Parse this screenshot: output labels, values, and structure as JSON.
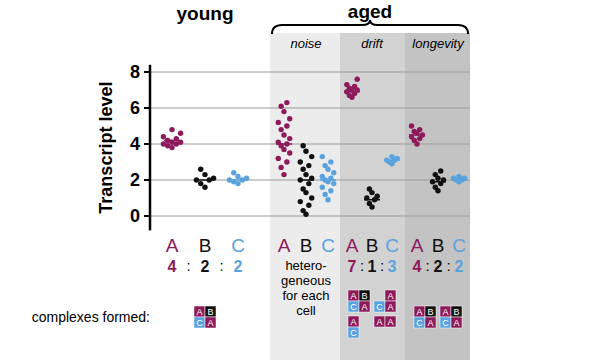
{
  "chart_data": {
    "type": "strip",
    "headers": [
      "young",
      "aged"
    ],
    "categories": [
      null,
      "noise",
      "drift",
      "longevity"
    ],
    "ylabel": "Transcript level",
    "ylim": [
      -0.8,
      8.4
    ],
    "yticks": [
      0,
      2,
      4,
      6,
      8
    ],
    "grid": true,
    "series": [
      {
        "name": "A",
        "color": "#8e1a5c",
        "values": [
          [
            3.8,
            3.9,
            4.0,
            4.0,
            4.1,
            4.1,
            4.2,
            4.3,
            4.4,
            4.6,
            4.8
          ],
          [
            2.3,
            2.7,
            3.0,
            3.2,
            3.5,
            3.7,
            3.9,
            4.0,
            4.1,
            4.3,
            4.5,
            4.8,
            5.0,
            5.2,
            5.4,
            5.8,
            6.1,
            6.3
          ],
          [
            6.6,
            6.7,
            6.8,
            6.9,
            7.0,
            7.0,
            7.1,
            7.2,
            7.3,
            7.6
          ],
          [
            4.0,
            4.2,
            4.3,
            4.4,
            4.5,
            4.6,
            4.7,
            4.8,
            5.0
          ]
        ],
        "means": [
          4.2,
          4.0,
          6.9,
          4.5
        ]
      },
      {
        "name": "B",
        "color": "#111111",
        "values": [
          [
            1.6,
            1.8,
            2.0,
            2.0,
            2.1,
            2.3,
            2.6
          ],
          [
            0.1,
            0.3,
            0.6,
            0.8,
            1.0,
            1.3,
            1.5,
            1.8,
            2.0,
            2.1,
            2.3,
            2.6,
            2.8,
            3.0,
            3.3,
            3.6,
            3.9
          ],
          [
            0.5,
            0.7,
            0.9,
            1.0,
            1.1,
            1.3,
            1.5
          ],
          [
            1.4,
            1.6,
            1.8,
            1.9,
            2.0,
            2.1,
            2.3,
            2.5
          ]
        ],
        "means": [
          2.0,
          2.0,
          0.9,
          1.9
        ]
      },
      {
        "name": "C",
        "color": "#5aa2dd",
        "values": [
          [
            1.8,
            1.9,
            2.0,
            2.0,
            2.1,
            2.2,
            2.4
          ],
          [
            0.9,
            1.2,
            1.4,
            1.6,
            1.8,
            1.9,
            2.0,
            2.1,
            2.2,
            2.4,
            2.6,
            2.8,
            3.0,
            3.3
          ],
          [
            2.9,
            3.0,
            3.1,
            3.1,
            3.2,
            3.3
          ],
          [
            1.9,
            2.0,
            2.0,
            2.1,
            2.1,
            2.2
          ]
        ],
        "means": [
          2.0,
          2.0,
          3.1,
          2.0
        ]
      }
    ],
    "ratios": [
      [
        4,
        2,
        2
      ],
      null,
      [
        7,
        1,
        3
      ],
      [
        4,
        2,
        2
      ]
    ],
    "ratio_separator": ":",
    "ratio_note": [
      "hetero-",
      "geneous",
      "for each",
      "cell"
    ],
    "complexes_label": "complexes formed:",
    "complexes": [
      [
        [
          "A",
          "B",
          "C",
          "A"
        ]
      ],
      [],
      [
        [
          "A",
          "B",
          "C",
          "A"
        ],
        [
          null,
          "A",
          "C",
          "A"
        ],
        [
          "A",
          null,
          "C",
          null
        ],
        [
          "A",
          "A",
          null,
          null
        ]
      ],
      [
        [
          "A",
          "B",
          "C",
          "A"
        ],
        [
          "A",
          "B",
          "C",
          "A"
        ]
      ]
    ]
  }
}
